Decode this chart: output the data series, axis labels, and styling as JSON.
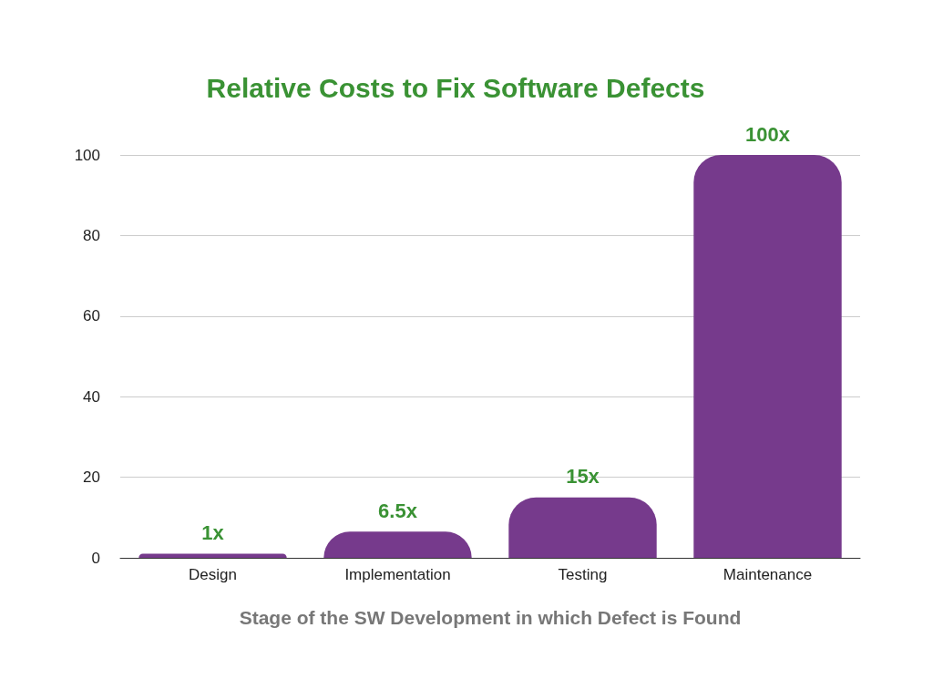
{
  "chart_data": {
    "type": "bar",
    "title": "Relative Costs to Fix Software Defects",
    "xlabel": "Stage of the SW Development in which Defect is Found",
    "categories": [
      "Design",
      "Implementation",
      "Testing",
      "Maintenance"
    ],
    "values": [
      1,
      6.5,
      15,
      100
    ],
    "value_labels": [
      "1x",
      "6.5x",
      "15x",
      "100x"
    ],
    "color": "#763a8c",
    "ylim": [
      0,
      100
    ],
    "yticks": [
      0,
      20,
      40,
      60,
      80,
      100
    ],
    "grid": "y"
  }
}
